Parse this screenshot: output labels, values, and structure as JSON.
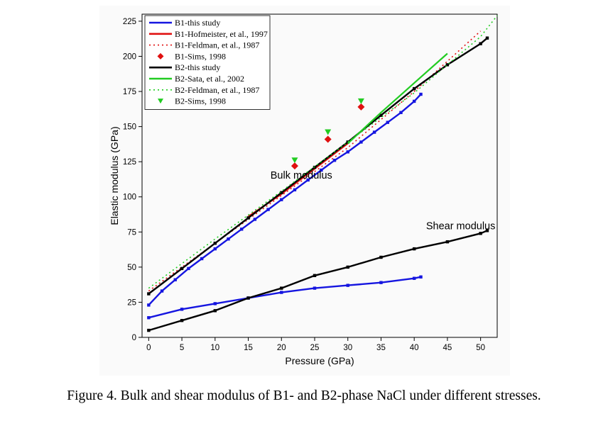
{
  "caption": "Figure 4. Bulk and shear modulus of B1- and B2-phase NaCl under different stresses.",
  "chart_data": {
    "type": "line",
    "xlabel": "Pressure (GPa)",
    "ylabel": "Elastic modulus (GPa)",
    "xlim": [
      -1,
      52.5
    ],
    "ylim": [
      0,
      230
    ],
    "xticks": [
      0,
      5,
      10,
      15,
      20,
      25,
      30,
      35,
      40,
      45,
      50
    ],
    "yticks": [
      0,
      25,
      50,
      75,
      100,
      125,
      150,
      175,
      200,
      225
    ],
    "legend_position": "top-left",
    "annotations": [
      {
        "text": "Bulk modulus",
        "x": 23,
        "y": 113
      },
      {
        "text": "Shear modulus",
        "x": 47,
        "y": 77
      }
    ],
    "series": [
      {
        "name": "B1-this study",
        "style": "solid-markers",
        "color": "#1515e0",
        "x": [
          0,
          2,
          4,
          6,
          8,
          10,
          12,
          14,
          16,
          18,
          20,
          22,
          24,
          26,
          28,
          30,
          32,
          34,
          36,
          38,
          40,
          41
        ],
        "y": [
          23,
          33,
          41,
          49,
          56,
          63,
          70,
          77,
          84,
          91,
          98,
          105,
          112,
          119,
          126,
          132,
          139,
          146,
          153,
          160,
          168,
          173
        ]
      },
      {
        "name": "B1-Hofmeister, et al., 1997",
        "style": "solid",
        "color": "#e01010",
        "x": [
          15,
          20,
          25,
          30
        ],
        "y": [
          86,
          102,
          120,
          138
        ]
      },
      {
        "name": "B1-Feldman, et al., 1987",
        "style": "dotted",
        "color": "#e01010",
        "x": [
          0,
          10,
          20,
          30,
          40,
          50
        ],
        "y": [
          33,
          67,
          101,
          135,
          175,
          218
        ]
      },
      {
        "name": "B1-Sims, 1998",
        "style": "diamond",
        "color": "#e01010",
        "x": [
          22,
          27,
          32
        ],
        "y": [
          122,
          141,
          164
        ]
      },
      {
        "name": "B2-this study",
        "style": "solid-markers",
        "color": "#000000",
        "x": [
          0,
          5,
          10,
          15,
          20,
          25,
          30,
          35,
          40,
          45,
          50,
          51
        ],
        "y": [
          31,
          49,
          67,
          85,
          103,
          121,
          139,
          158,
          177,
          194,
          209,
          213
        ]
      },
      {
        "name": "B2-Sata, et al., 2002",
        "style": "solid",
        "color": "#22cc22",
        "x": [
          30,
          35,
          40,
          45
        ],
        "y": [
          138,
          160,
          181,
          202
        ]
      },
      {
        "name": "B2-Feldman, et al., 1987",
        "style": "dotted",
        "color": "#22cc22",
        "x": [
          0,
          10,
          20,
          30,
          40,
          50,
          52.5
        ],
        "y": [
          35,
          70,
          104,
          139,
          174,
          214,
          229
        ]
      },
      {
        "name": "B2-Sims, 1998",
        "style": "triangle",
        "color": "#22cc22",
        "x": [
          22,
          27,
          32
        ],
        "y": [
          126,
          146,
          168
        ]
      },
      {
        "name": "",
        "group": "shear",
        "style": "solid-markers",
        "color": "#1515e0",
        "x": [
          0,
          5,
          10,
          15,
          20,
          25,
          30,
          35,
          40,
          41
        ],
        "y": [
          14,
          20,
          24,
          28,
          32,
          35,
          37,
          39,
          42,
          43
        ]
      },
      {
        "name": "",
        "group": "shear",
        "style": "solid-markers",
        "color": "#000000",
        "x": [
          0,
          5,
          10,
          15,
          20,
          25,
          30,
          35,
          40,
          45,
          50,
          51
        ],
        "y": [
          5,
          12,
          19,
          28,
          35,
          44,
          50,
          57,
          63,
          68,
          74,
          76
        ]
      }
    ]
  }
}
